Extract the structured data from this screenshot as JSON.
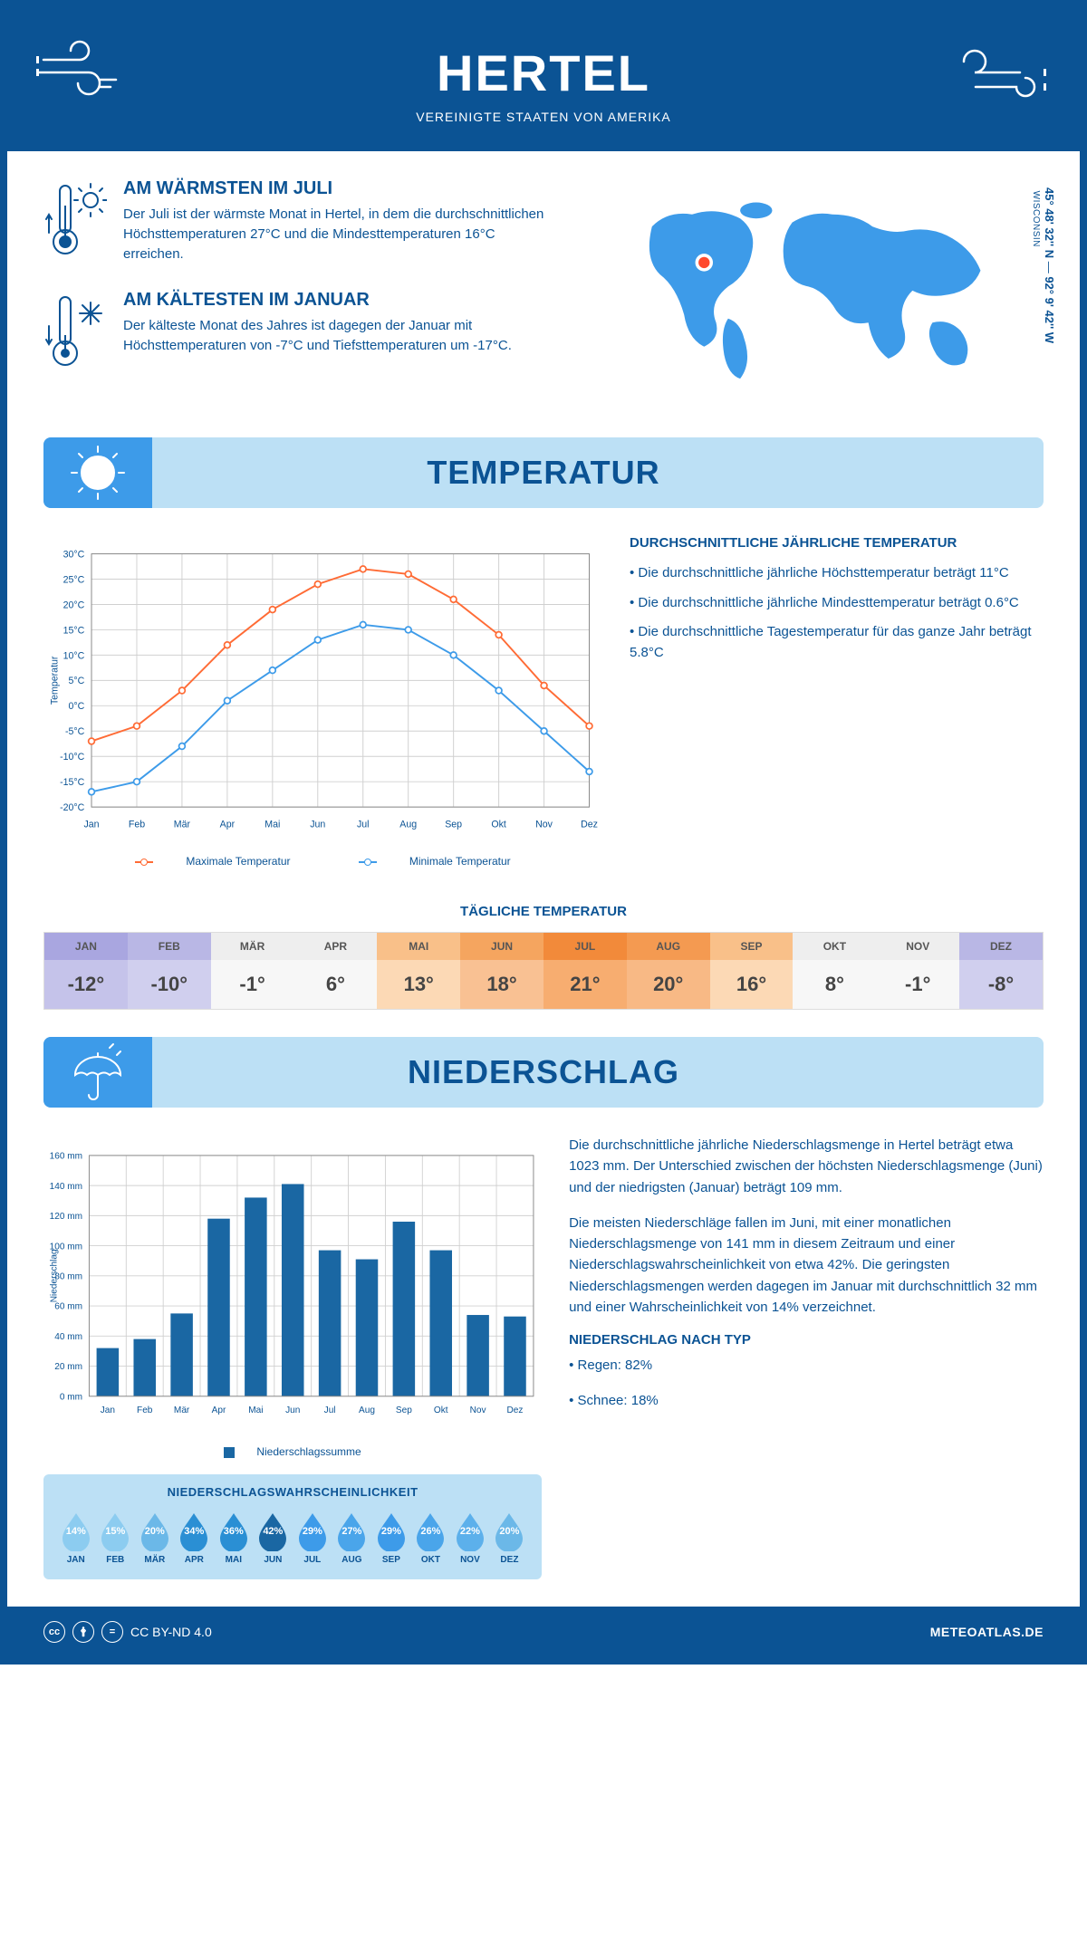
{
  "header": {
    "title": "HERTEL",
    "subtitle": "VEREINIGTE STAATEN VON AMERIKA"
  },
  "coords": {
    "lat": "45° 48' 32'' N",
    "lon": "92° 9' 42'' W",
    "state": "WISCONSIN"
  },
  "facts": {
    "warm": {
      "title": "AM WÄRMSTEN IM JULI",
      "text": "Der Juli ist der wärmste Monat in Hertel, in dem die durchschnittlichen Höchsttemperaturen 27°C und die Mindesttemperaturen 16°C erreichen."
    },
    "cold": {
      "title": "AM KÄLTESTEN IM JANUAR",
      "text": "Der kälteste Monat des Jahres ist dagegen der Januar mit Höchsttemperaturen von -7°C und Tiefsttemperaturen um -17°C."
    }
  },
  "sections": {
    "temp": "TEMPERATUR",
    "precip": "NIEDERSCHLAG"
  },
  "months": [
    "Jan",
    "Feb",
    "Mär",
    "Apr",
    "Mai",
    "Jun",
    "Jul",
    "Aug",
    "Sep",
    "Okt",
    "Nov",
    "Dez"
  ],
  "months_uc": [
    "JAN",
    "FEB",
    "MÄR",
    "APR",
    "MAI",
    "JUN",
    "JUL",
    "AUG",
    "SEP",
    "OKT",
    "NOV",
    "DEZ"
  ],
  "temp_chart": {
    "max_series": [
      -7,
      -4,
      3,
      12,
      19,
      24,
      27,
      26,
      21,
      14,
      4,
      -4
    ],
    "min_series": [
      -17,
      -15,
      -8,
      1,
      7,
      13,
      16,
      15,
      10,
      3,
      -5,
      -13
    ],
    "ylim": [
      -20,
      30
    ],
    "ytick_step": 5,
    "ylabel": "Temperatur",
    "max_color": "#ff6b35",
    "min_color": "#3d9be9",
    "grid_color": "#d0d0d0",
    "bg": "#ffffff",
    "legend": {
      "max": "Maximale Temperatur",
      "min": "Minimale Temperatur"
    }
  },
  "temp_info": {
    "title": "DURCHSCHNITTLICHE JÄHRLICHE TEMPERATUR",
    "b1": "• Die durchschnittliche jährliche Höchsttemperatur beträgt 11°C",
    "b2": "• Die durchschnittliche jährliche Mindesttemperatur beträgt 0.6°C",
    "b3": "• Die durchschnittliche Tagestemperatur für das ganze Jahr beträgt 5.8°C"
  },
  "daily": {
    "title": "TÄGLICHE TEMPERATUR",
    "values": [
      "-12°",
      "-10°",
      "-1°",
      "6°",
      "13°",
      "18°",
      "21°",
      "20°",
      "16°",
      "8°",
      "-1°",
      "-8°"
    ],
    "header_bg": [
      "#a9a6e0",
      "#b9b7e5",
      "#eeeeee",
      "#eeeeee",
      "#f9c089",
      "#f5a55f",
      "#f28a3a",
      "#f49a51",
      "#f9c089",
      "#eeeeee",
      "#eeeeee",
      "#b9b7e5"
    ],
    "body_bg": [
      "#c5c3ea",
      "#d0cfee",
      "#f7f7f7",
      "#f7f7f7",
      "#fcd9b5",
      "#f9c193",
      "#f7ad70",
      "#f8b985",
      "#fcd9b5",
      "#f7f7f7",
      "#f7f7f7",
      "#d0cfee"
    ]
  },
  "precip_chart": {
    "values": [
      32,
      38,
      55,
      118,
      132,
      141,
      97,
      91,
      116,
      97,
      54,
      53
    ],
    "ylim": [
      0,
      160
    ],
    "ytick_step": 20,
    "ylabel": "Niederschlag",
    "bar_color": "#1a67a3",
    "grid_color": "#d0d0d0",
    "legend": "Niederschlagssumme"
  },
  "precip_text": {
    "p1": "Die durchschnittliche jährliche Niederschlagsmenge in Hertel beträgt etwa 1023 mm. Der Unterschied zwischen der höchsten Niederschlagsmenge (Juni) und der niedrigsten (Januar) beträgt 109 mm.",
    "p2": "Die meisten Niederschläge fallen im Juni, mit einer monatlichen Niederschlagsmenge von 141 mm in diesem Zeitraum und einer Niederschlagswahrscheinlichkeit von etwa 42%. Die geringsten Niederschlagsmengen werden dagegen im Januar mit durchschnittlich 32 mm und einer Wahrscheinlichkeit von 14% verzeichnet.",
    "type_title": "NIEDERSCHLAG NACH TYP",
    "type1": "• Regen: 82%",
    "type2": "• Schnee: 18%"
  },
  "prob": {
    "title": "NIEDERSCHLAGSWAHRSCHEINLICHKEIT",
    "values": [
      "14%",
      "15%",
      "20%",
      "34%",
      "36%",
      "42%",
      "29%",
      "27%",
      "29%",
      "26%",
      "22%",
      "20%"
    ],
    "colors": [
      "#8cccf0",
      "#8cccf0",
      "#6bb8e8",
      "#2a8fd4",
      "#2a8fd4",
      "#1a67a3",
      "#3d9be9",
      "#4aa5ea",
      "#3d9be9",
      "#4aa5ea",
      "#5cb0eb",
      "#6bb8e8"
    ]
  },
  "footer": {
    "license": "CC BY-ND 4.0",
    "brand": "METEOATLAS.DE"
  }
}
